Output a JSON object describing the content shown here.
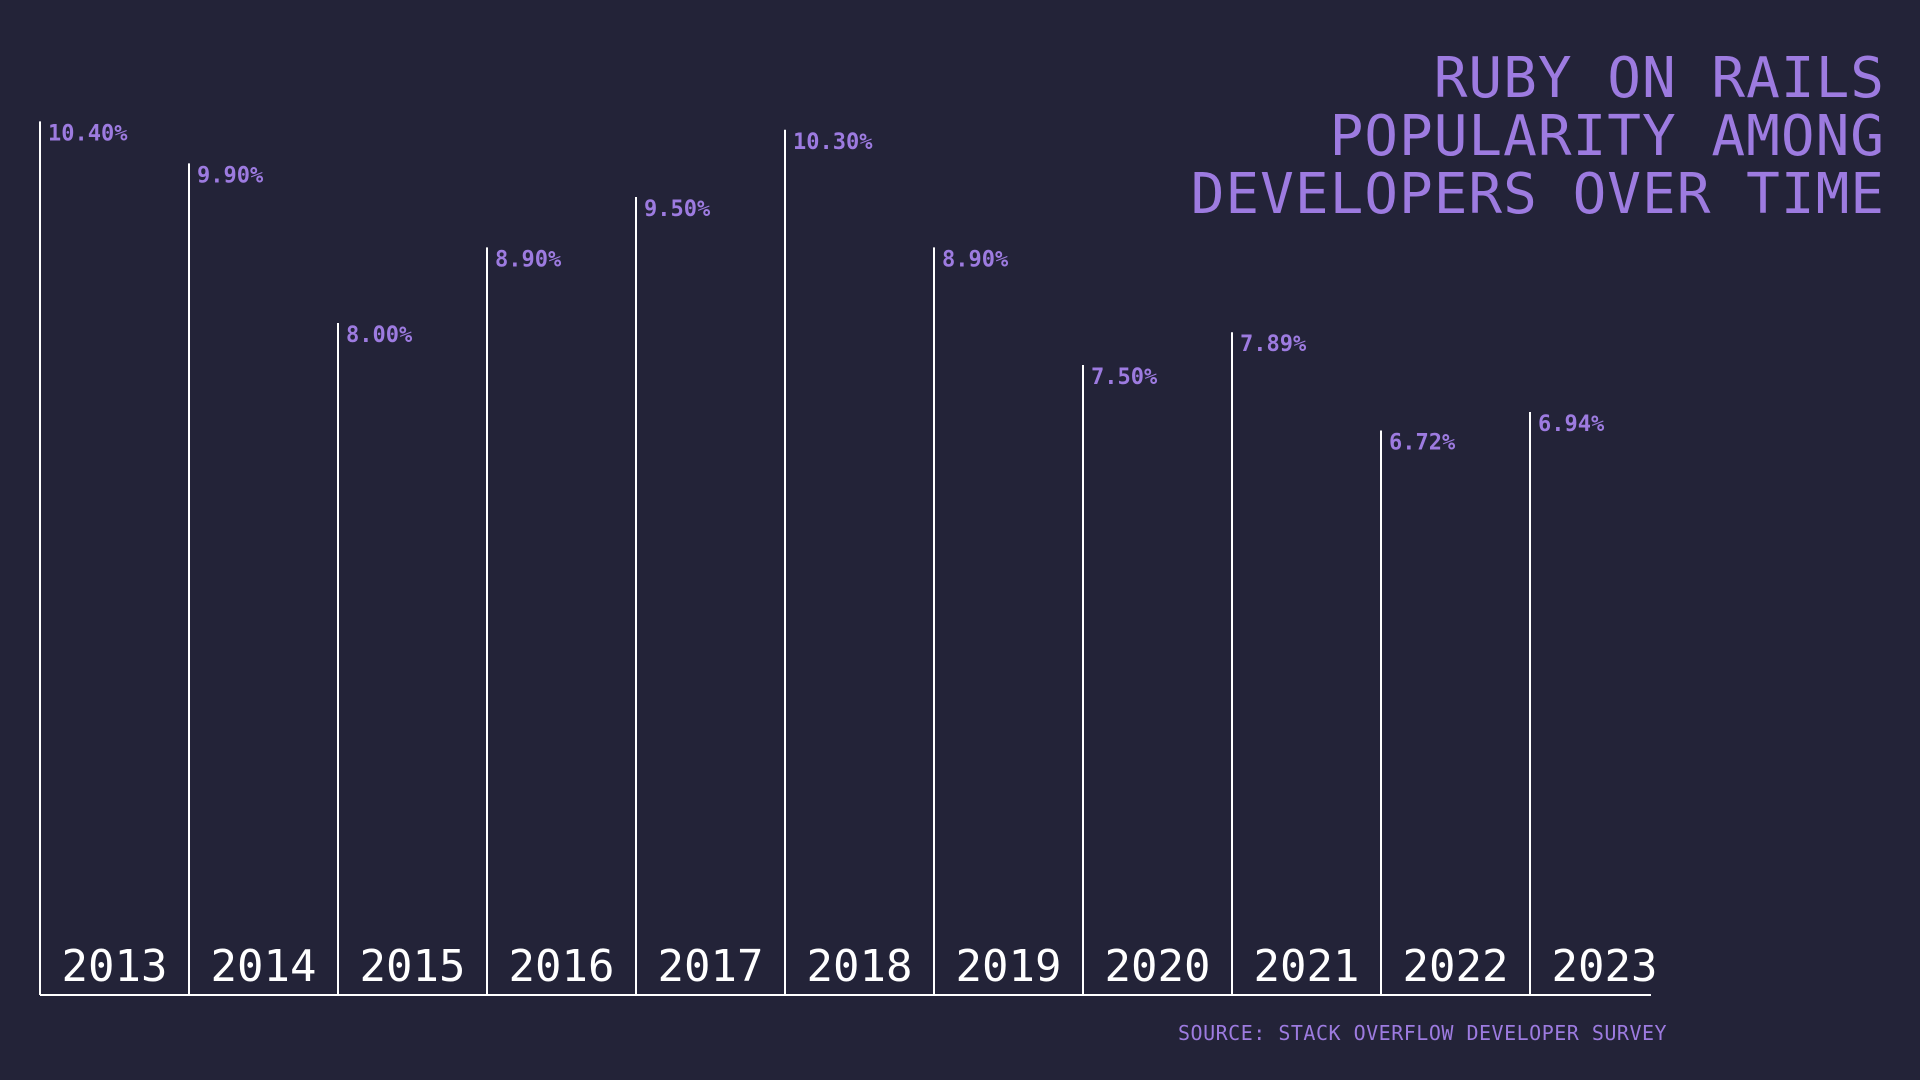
{
  "chart_data": {
    "type": "bar",
    "title": "RUBY ON RAILS POPULARITY AMONG DEVELOPERS OVER TIME",
    "source": "SOURCE: STACK OVERFLOW DEVELOPER SURVEY",
    "categories": [
      "2013",
      "2014",
      "2015",
      "2016",
      "2017",
      "2018",
      "2019",
      "2020",
      "2021",
      "2022",
      "2023"
    ],
    "values": [
      10.4,
      9.9,
      8.0,
      8.9,
      9.5,
      10.3,
      8.9,
      7.5,
      7.89,
      6.72,
      6.94
    ],
    "value_labels": [
      "10.40%",
      "9.90%",
      "8.00%",
      "8.90%",
      "9.50%",
      "10.30%",
      "8.90%",
      "7.50%",
      "7.89%",
      "6.72%",
      "6.94%"
    ],
    "ylim": [
      0,
      11.5
    ],
    "grid": false,
    "colors": {
      "background": "#232338",
      "accent": "#9d7be0",
      "lines": "#ffffff"
    }
  }
}
